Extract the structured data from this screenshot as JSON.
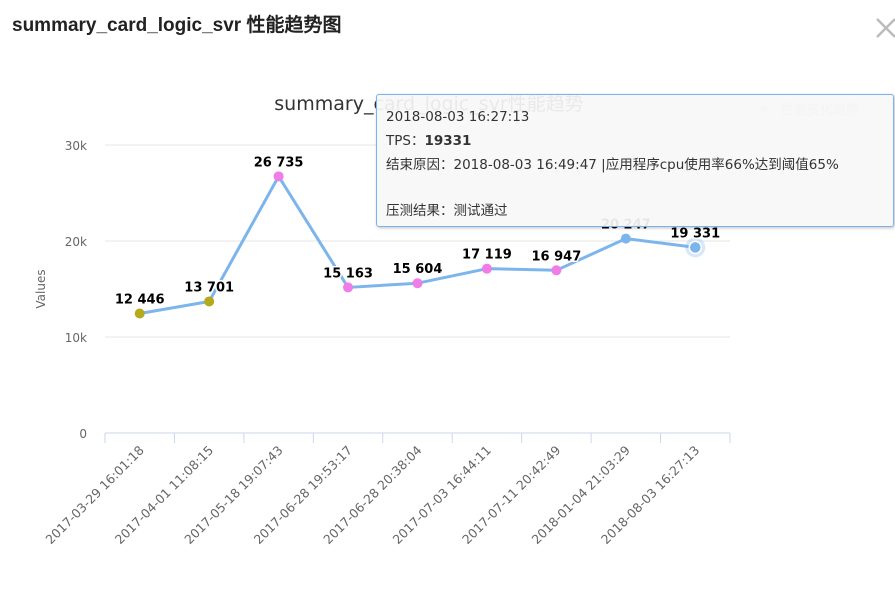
{
  "dialog": {
    "title": "summary_card_logic_svr 性能趋势图"
  },
  "tooltip": {
    "date": "2018-08-03 16:27:13",
    "tps_label": "TPS：",
    "tps_value": "19331",
    "end_reason": "结束原因：2018-08-03 16:49:47 |应用程序cpu使用率66%达到阈值65%",
    "result": "压测结果：测试通过"
  },
  "colors": {
    "line": "#7cb5ec",
    "marker_olive": "#b5a91c",
    "marker_pink": "#f07ce8",
    "marker_blue": "#7cb5ec",
    "grid": "#e6e6e6",
    "axis": "#ccd6eb"
  },
  "chart_data": {
    "type": "line",
    "title": "summary_card_logic_svr性能趋势",
    "ylabel": "Values",
    "xlabel": "",
    "ylim": [
      0,
      30000
    ],
    "yticks": [
      0,
      10000,
      20000,
      30000
    ],
    "ytick_labels": [
      "0",
      "10k",
      "20k",
      "30k"
    ],
    "grid": true,
    "legend_position": "top-right",
    "categories": [
      "2017-03-29 16:01:18",
      "2017-04-01 11:08:15",
      "2017-05-18 19:07:43",
      "2017-06-28 19:53:17",
      "2017-06-28 20:38:04",
      "2017-07-03 16:44:11",
      "2017-07-11 20:42:49",
      "2018-01-04 21:03:29",
      "2018-08-03 16:27:13"
    ],
    "series": [
      {
        "name": "性能变化趋势",
        "values": [
          12446,
          13701,
          26735,
          15163,
          15604,
          17119,
          16947,
          20247,
          19331
        ],
        "labels": [
          "12 446",
          "13 701",
          "26 735",
          "15 163",
          "15 604",
          "17 119",
          "16 947",
          "20 247",
          "19 331"
        ],
        "marker_colors": [
          "olive",
          "olive",
          "pink",
          "pink",
          "pink",
          "pink",
          "pink",
          "blue",
          "blue"
        ]
      }
    ],
    "highlighted_index": 8
  }
}
